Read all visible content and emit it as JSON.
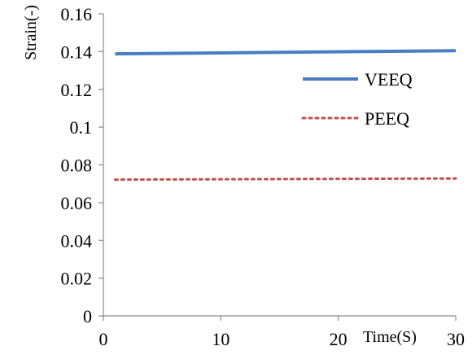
{
  "chart_data": {
    "type": "line",
    "title": "",
    "xlabel": "Time(S)",
    "ylabel": "Strain(-)",
    "xlim": [
      0,
      30
    ],
    "ylim": [
      0,
      0.16
    ],
    "x_ticks": [
      "0",
      "10",
      "20",
      "30"
    ],
    "y_ticks": [
      "0",
      "0.02",
      "0.04",
      "0.06",
      "0.08",
      "0.1",
      "0.12",
      "0.14",
      "0.16"
    ],
    "grid": false,
    "legend_position": "right",
    "series": [
      {
        "name": "VEEQ",
        "style": "solid",
        "color": "#4a7ec0",
        "x": [
          1,
          30
        ],
        "y": [
          0.1388,
          0.1405
        ]
      },
      {
        "name": "PEEQ",
        "style": "dotted",
        "color": "#c0504d",
        "x": [
          1,
          30
        ],
        "y": [
          0.0722,
          0.0728
        ]
      }
    ]
  }
}
